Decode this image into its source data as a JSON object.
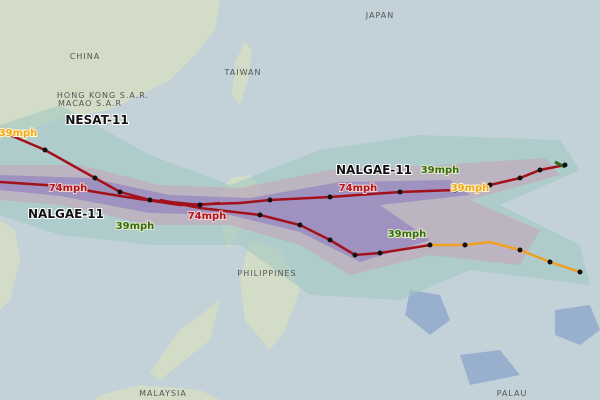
{
  "places": [
    "JAPAN",
    "CHINA",
    "TAIWAN",
    "HONG KONG S.A.R.",
    "MACAO S.A.R",
    "PHILIPPINES",
    "MALAYSIA",
    "PALAU"
  ],
  "storms": [
    "NESAT-11",
    "NALGAE-11",
    "NALGAE-11"
  ],
  "speeds": [
    "39mph",
    "39mph",
    "39mph",
    "74mph",
    "74mph",
    "74mph",
    "39mph",
    "39mph"
  ]
}
